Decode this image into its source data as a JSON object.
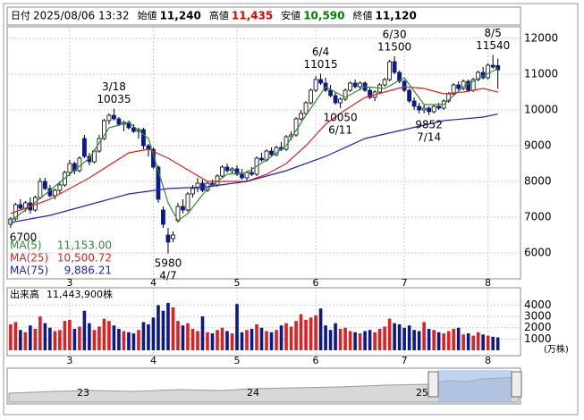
{
  "chart_data": {
    "type": "candlestick",
    "header": [
      {
        "label": "日付",
        "text": "2025/08/06 13:32",
        "color": "#000"
      },
      {
        "label": "始値",
        "text": "11,240",
        "color": "#000"
      },
      {
        "label": "高値",
        "text": "11,435",
        "color": "#e00000"
      },
      {
        "label": "安値",
        "text": "10,590",
        "color": "#008000"
      },
      {
        "label": "終値",
        "text": "11,120",
        "color": "#000"
      }
    ],
    "ylim": [
      5275,
      12325
    ],
    "yticks": [
      6000,
      7000,
      8000,
      9000,
      10000,
      11000,
      12000
    ],
    "xlim": [
      -0.7,
      103.6
    ],
    "xticks": [
      {
        "value": 12,
        "label": "3"
      },
      {
        "value": 29,
        "label": "4"
      },
      {
        "value": 46,
        "label": "5"
      },
      {
        "value": 62,
        "label": "6"
      },
      {
        "value": 80,
        "label": "7"
      },
      {
        "value": 97,
        "label": "8"
      }
    ],
    "up_color": "#ffffff",
    "down_color": "#0a1a8c",
    "candles": [
      [
        6800,
        7000,
        6700,
        6950
      ],
      [
        6950,
        7400,
        6900,
        7350
      ],
      [
        7350,
        7500,
        7200,
        7250
      ],
      [
        7250,
        7450,
        7150,
        7400
      ],
      [
        7400,
        7550,
        7100,
        7200
      ],
      [
        7200,
        7600,
        7150,
        7550
      ],
      [
        7550,
        8100,
        7500,
        8000
      ],
      [
        8000,
        8100,
        7750,
        7800
      ],
      [
        7800,
        7900,
        7550,
        7600
      ],
      [
        7600,
        7800,
        7500,
        7750
      ],
      [
        7750,
        8000,
        7650,
        7900
      ],
      [
        7900,
        8300,
        7850,
        8250
      ],
      [
        8250,
        8600,
        8150,
        8500
      ],
      [
        8500,
        8550,
        8200,
        8300
      ],
      [
        8300,
        8700,
        8250,
        8650
      ],
      [
        9200,
        9300,
        8650,
        8700
      ],
      [
        8700,
        8800,
        8450,
        8550
      ],
      [
        8550,
        8900,
        8500,
        8850
      ],
      [
        8850,
        9300,
        8800,
        9200
      ],
      [
        9200,
        9750,
        9150,
        9700
      ],
      [
        9700,
        9900,
        9600,
        9850
      ],
      [
        9850,
        10035,
        9700,
        9750
      ],
      [
        9750,
        9800,
        9550,
        9600
      ],
      [
        9600,
        9700,
        9400,
        9650
      ],
      [
        9650,
        9700,
        9450,
        9500
      ],
      [
        9500,
        9600,
        9350,
        9400
      ],
      [
        9400,
        9500,
        9200,
        9450
      ],
      [
        9450,
        9500,
        8900,
        9000
      ],
      [
        9000,
        9050,
        8700,
        8900
      ],
      [
        8900,
        8950,
        8350,
        8400
      ],
      [
        8400,
        8450,
        7400,
        7500
      ],
      [
        7200,
        7300,
        6700,
        6800
      ],
      [
        6500,
        6700,
        5980,
        6300
      ],
      [
        6400,
        6600,
        6300,
        6500
      ],
      [
        6900,
        7400,
        6850,
        7300
      ],
      [
        7300,
        7500,
        7100,
        7200
      ],
      [
        7200,
        7700,
        7150,
        7650
      ],
      [
        7650,
        7900,
        7550,
        7800
      ],
      [
        7800,
        8100,
        7700,
        7950
      ],
      [
        7950,
        8050,
        7700,
        7750
      ],
      [
        7750,
        8000,
        7700,
        7950
      ],
      [
        7950,
        8050,
        7850,
        7900
      ],
      [
        7900,
        8200,
        7850,
        8150
      ],
      [
        8150,
        8450,
        8100,
        8400
      ],
      [
        8400,
        8500,
        8250,
        8300
      ],
      [
        8300,
        8400,
        8200,
        8350
      ],
      [
        8350,
        8450,
        8150,
        8200
      ],
      [
        8200,
        8350,
        8050,
        8100
      ],
      [
        8100,
        8300,
        8000,
        8250
      ],
      [
        8250,
        8400,
        8150,
        8200
      ],
      [
        8200,
        8700,
        8150,
        8650
      ],
      [
        8650,
        8800,
        8550,
        8600
      ],
      [
        8600,
        8900,
        8550,
        8850
      ],
      [
        8850,
        8950,
        8700,
        8750
      ],
      [
        8750,
        9000,
        8700,
        8950
      ],
      [
        8950,
        9100,
        8850,
        8900
      ],
      [
        8900,
        9300,
        8850,
        9250
      ],
      [
        9250,
        9400,
        9150,
        9300
      ],
      [
        9300,
        9800,
        9250,
        9750
      ],
      [
        9750,
        10000,
        9700,
        9900
      ],
      [
        9900,
        10250,
        9850,
        10200
      ],
      [
        10200,
        10600,
        10150,
        10550
      ],
      [
        10550,
        10950,
        10500,
        10850
      ],
      [
        10850,
        11015,
        10700,
        10750
      ],
      [
        10750,
        10900,
        10500,
        10550
      ],
      [
        10550,
        10700,
        10350,
        10400
      ],
      [
        10400,
        10500,
        10150,
        10200
      ],
      [
        10200,
        10350,
        10050,
        10300
      ],
      [
        10300,
        10600,
        10250,
        10550
      ],
      [
        10550,
        10800,
        10500,
        10750
      ],
      [
        10750,
        10850,
        10600,
        10650
      ],
      [
        10650,
        10800,
        10550,
        10750
      ],
      [
        10750,
        10800,
        10500,
        10550
      ],
      [
        10550,
        10650,
        10300,
        10350
      ],
      [
        10350,
        10550,
        10250,
        10500
      ],
      [
        10500,
        10750,
        10450,
        10700
      ],
      [
        10700,
        10900,
        10650,
        10850
      ],
      [
        10850,
        11400,
        10800,
        11350
      ],
      [
        11350,
        11500,
        11000,
        11050
      ],
      [
        11050,
        11100,
        10750,
        10800
      ],
      [
        10800,
        10850,
        10500,
        10550
      ],
      [
        10550,
        10600,
        10200,
        10250
      ],
      [
        10250,
        10350,
        10000,
        10100
      ],
      [
        10100,
        10200,
        9900,
        10000
      ],
      [
        10000,
        10150,
        9900,
        10050
      ],
      [
        10050,
        10100,
        9852,
        9950
      ],
      [
        9950,
        10150,
        9900,
        10100
      ],
      [
        10100,
        10200,
        10000,
        10050
      ],
      [
        10050,
        10300,
        10000,
        10250
      ],
      [
        10250,
        10500,
        10200,
        10450
      ],
      [
        10450,
        10750,
        10400,
        10700
      ],
      [
        10700,
        10800,
        10550,
        10600
      ],
      [
        10600,
        10850,
        10550,
        10800
      ],
      [
        10800,
        10850,
        10500,
        10550
      ],
      [
        10550,
        10900,
        10500,
        10850
      ],
      [
        10850,
        11100,
        10800,
        11050
      ],
      [
        11050,
        11200,
        10850,
        10900
      ],
      [
        10900,
        11300,
        10850,
        11250
      ],
      [
        11250,
        11540,
        11150,
        11200
      ],
      [
        11240,
        11435,
        10590,
        11120
      ]
    ],
    "series": [
      {
        "name": "MA(5)",
        "color": "#2e8b2e",
        "current_label": "11,153.00",
        "x": [
          0,
          4,
          8,
          12,
          16,
          20,
          24,
          28,
          32,
          34,
          36,
          40,
          44,
          48,
          52,
          56,
          60,
          64,
          68,
          72,
          76,
          80,
          84,
          88,
          92,
          96,
          99
        ],
        "values": [
          6900,
          7300,
          7750,
          8200,
          8650,
          9500,
          9650,
          9200,
          7400,
          6900,
          7100,
          7800,
          8200,
          8250,
          8600,
          9000,
          9850,
          10650,
          10350,
          10650,
          10600,
          10900,
          10150,
          10150,
          10650,
          10950,
          11153
        ]
      },
      {
        "name": "MA(25)",
        "color": "#e02020",
        "current_label": "10,500.72",
        "x": [
          0,
          8,
          16,
          24,
          28,
          32,
          40,
          48,
          52,
          56,
          60,
          64,
          68,
          72,
          76,
          80,
          84,
          88,
          92,
          96,
          99
        ],
        "values": [
          7100,
          7500,
          8100,
          8800,
          8900,
          8650,
          8000,
          8000,
          8200,
          8500,
          9000,
          9600,
          10000,
          10350,
          10500,
          10650,
          10600,
          10450,
          10500,
          10600,
          10500.72
        ]
      },
      {
        "name": "MA(75)",
        "color": "#2020d0",
        "current_label": "9,886.21",
        "x": [
          0,
          8,
          16,
          24,
          32,
          40,
          48,
          56,
          64,
          72,
          80,
          88,
          96,
          99
        ],
        "values": [
          6850,
          7050,
          7350,
          7650,
          7800,
          7850,
          8000,
          8300,
          8700,
          9200,
          9450,
          9700,
          9800,
          9886.21
        ]
      }
    ],
    "annotations": [
      {
        "value": 6700,
        "position": "below"
      },
      {
        "date": "3/18",
        "value": 10035,
        "position": "above"
      },
      {
        "date": "4/7",
        "value": 5980,
        "position": "below"
      },
      {
        "date": "6/4",
        "value": 11015,
        "position": "above"
      },
      {
        "date": "6/11",
        "value": 10050,
        "position": "below"
      },
      {
        "date": "6/30",
        "value": 11500,
        "position": "above"
      },
      {
        "date": "7/14",
        "value": 9852,
        "position": "below"
      },
      {
        "date": "8/5",
        "value": 11540,
        "position": "above"
      }
    ],
    "volume": {
      "title": "出来高",
      "current_label": "11,443,900株",
      "unit": "(万株)",
      "ylim": [
        0,
        5300
      ],
      "yticks": [
        1000,
        2000,
        3000,
        4000
      ],
      "values": [
        2300,
        2500,
        1800,
        1600,
        2200,
        1900,
        3000,
        2400,
        2000,
        1700,
        1800,
        2600,
        2700,
        1900,
        2100,
        3500,
        2400,
        1800,
        2100,
        2800,
        2600,
        2200,
        1900,
        1700,
        1600,
        1500,
        1800,
        2500,
        2300,
        2900,
        4000,
        3500,
        4200,
        3800,
        2600,
        2200,
        2400,
        1900,
        1700,
        3000,
        1600,
        1500,
        1800,
        2000,
        1700,
        1500,
        4100,
        1600,
        1800,
        1900,
        2300,
        2000,
        1700,
        1600,
        1800,
        2200,
        2400,
        2100,
        2600,
        3200,
        2700,
        2900,
        3100,
        3700,
        2200,
        1800,
        2400,
        1900,
        2000,
        1700,
        1600,
        1500,
        1700,
        1800,
        1600,
        1900,
        2100,
        2800,
        2400,
        2300,
        2000,
        2200,
        1800,
        1700,
        2500,
        1900,
        1800,
        1600,
        1500,
        1700,
        1900,
        2000,
        1400,
        1500,
        1300,
        1600,
        1400,
        1300,
        1200,
        1144.39
      ],
      "up_color": "#e02020",
      "down_color": "#0a1a8c"
    },
    "navigator": {
      "labels": [
        "23",
        "24",
        "25"
      ]
    }
  }
}
